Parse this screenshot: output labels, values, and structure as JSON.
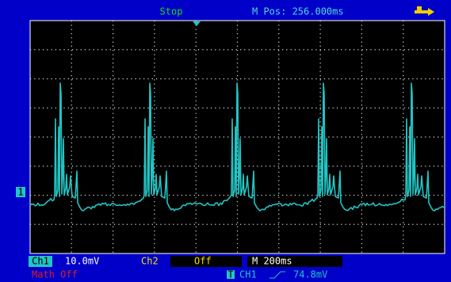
{
  "header": {
    "status": "Stop",
    "position": "M Pos: 256.000ms"
  },
  "footer": {
    "ch1_label": "Ch1",
    "ch1_scale": "10.0mV",
    "ch2_label": "Ch2",
    "ch2_state": "Off",
    "timebase": "M 200ms",
    "math": "Math Off",
    "trigger_source": "CH1",
    "trigger_level": "74.8mV"
  },
  "markers": {
    "channel": "1",
    "trigger": "T"
  }
}
